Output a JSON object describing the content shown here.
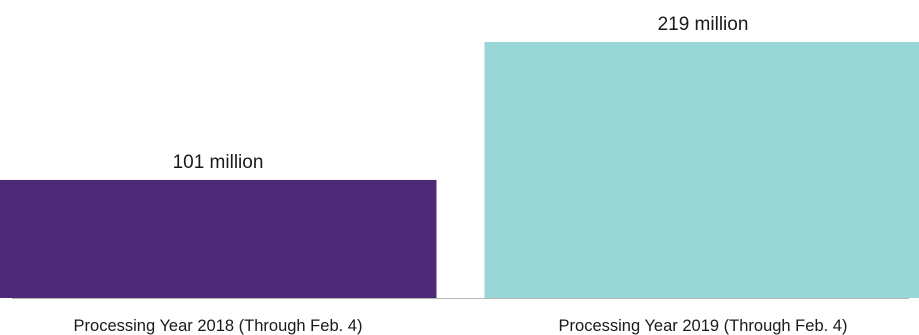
{
  "chart_data": {
    "type": "bar",
    "title": "",
    "xlabel": "",
    "ylabel": "",
    "categories": [
      "Processing Year 2018 (Through Feb. 4)",
      "Processing Year 2019 (Through Feb. 4)"
    ],
    "values": [
      101,
      219
    ],
    "data_labels": [
      "101 million",
      "219 million"
    ],
    "units": "million",
    "ylim": [
      0,
      219
    ],
    "grid": false,
    "legend": "none",
    "colors": [
      "#4d2a77",
      "#99d6d6"
    ],
    "axis_color": "#b3b3b3"
  }
}
